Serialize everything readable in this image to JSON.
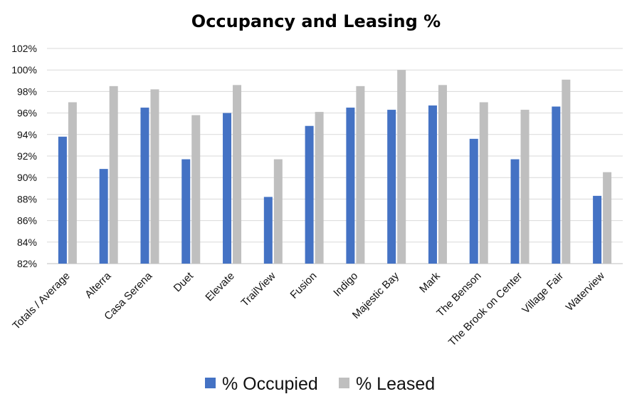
{
  "chart_data": {
    "type": "bar",
    "title": "Occupancy and Leasing %",
    "xlabel": "",
    "ylabel": "",
    "categories": [
      "Totals / Average",
      "Alterra",
      "Casa Serena",
      "Duet",
      "Elevate",
      "TrailView",
      "Fusion",
      "Indigo",
      "Majestic Bay",
      "Mark",
      "The Benson",
      "The Brook on Center",
      "Village Fair",
      "Waterview"
    ],
    "series": [
      {
        "name": "% Occupied",
        "color": "#4472C4",
        "values": [
          93.8,
          90.8,
          96.5,
          91.7,
          96.0,
          88.2,
          94.8,
          96.5,
          96.3,
          96.7,
          93.6,
          91.7,
          96.6,
          88.3
        ]
      },
      {
        "name": "% Leased",
        "color": "#BFBFBF",
        "values": [
          97.0,
          98.5,
          98.2,
          95.8,
          98.6,
          91.7,
          96.1,
          98.5,
          100.0,
          98.6,
          97.0,
          96.3,
          99.1,
          90.5
        ]
      }
    ],
    "ylim": [
      82,
      102
    ],
    "yticks": [
      "82%",
      "84%",
      "86%",
      "88%",
      "90%",
      "92%",
      "94%",
      "96%",
      "98%",
      "100%",
      "102%"
    ],
    "grid": true,
    "legend": "bottom"
  }
}
